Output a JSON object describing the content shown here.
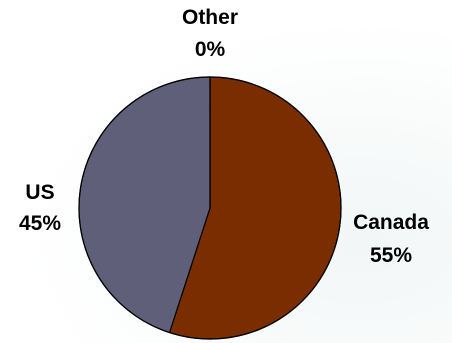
{
  "chart_data": {
    "type": "pie",
    "title": "",
    "slices": [
      {
        "name": "Canada",
        "value": 55,
        "label": "55%",
        "color": "#7a2e00"
      },
      {
        "name": "US",
        "value": 45,
        "label": "45%",
        "color": "#5f5f7a"
      },
      {
        "name": "Other",
        "value": 0,
        "label": "0%",
        "color": "#9aa0b8"
      }
    ],
    "start_angle_deg": 0,
    "direction": "clockwise",
    "outline_color": "#000000"
  }
}
